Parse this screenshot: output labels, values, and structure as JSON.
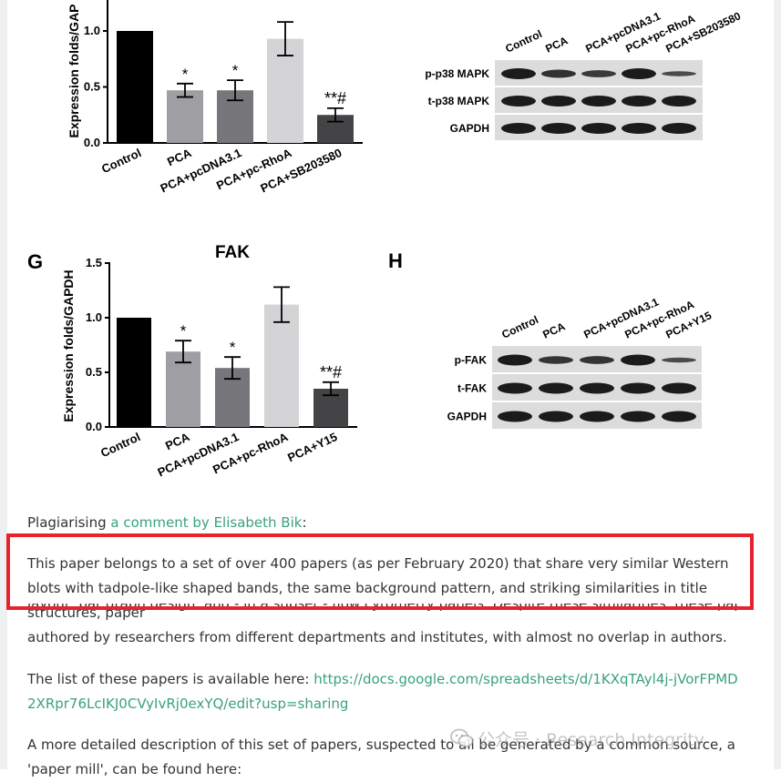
{
  "figure": {
    "top_chart": {
      "ylabel": "Expression folds/GAPDH",
      "ylabel_visible": "Expression folds/GAP",
      "yticks": [
        "1.0",
        "0.5",
        "0.0"
      ],
      "bars": [
        {
          "label": "Control",
          "value": 1.0,
          "err": 0,
          "sig": ""
        },
        {
          "label": "PCA",
          "value": 0.47,
          "err": 0.06,
          "sig": "*"
        },
        {
          "label": "PCA+pcDNA3.1",
          "value": 0.47,
          "err": 0.09,
          "sig": "*"
        },
        {
          "label": "PCA+pc-RhoA",
          "value": 0.93,
          "err": 0.15,
          "sig": ""
        },
        {
          "label": "PCA+SB203580",
          "value": 0.25,
          "err": 0.06,
          "sig": "**#"
        }
      ]
    },
    "top_blot": {
      "lanes": [
        "Control",
        "PCA",
        "PCA+pcDNA3.1",
        "PCA+pc-RhoA",
        "PCA+SB203580"
      ],
      "rows": [
        "p-p38 MAPK",
        "t-p38 MAPK",
        "GAPDH"
      ]
    },
    "panel_g": {
      "letter": "G",
      "title": "FAK",
      "ylabel": "Expression folds/GAPDH",
      "yticks": [
        "1.5",
        "1.0",
        "0.5",
        "0.0"
      ],
      "ylim": [
        0,
        1.5
      ],
      "bars": [
        {
          "label": "Control",
          "value": 1.0,
          "err": 0,
          "sig": ""
        },
        {
          "label": "PCA",
          "value": 0.69,
          "err": 0.1,
          "sig": "*"
        },
        {
          "label": "PCA+pcDNA3.1",
          "value": 0.54,
          "err": 0.1,
          "sig": "*"
        },
        {
          "label": "PCA+pc-RhoA",
          "value": 1.12,
          "err": 0.16,
          "sig": ""
        },
        {
          "label": "PCA+Y15",
          "value": 0.35,
          "err": 0.06,
          "sig": "**#"
        }
      ]
    },
    "panel_h": {
      "letter": "H",
      "lanes": [
        "Control",
        "PCA",
        "PCA+pcDNA3.1",
        "PCA+pc-RhoA",
        "PCA+Y15"
      ],
      "rows": [
        "p-FAK",
        "t-FAK",
        "GAPDH"
      ]
    }
  },
  "article": {
    "p1_prefix": "Plagiarising ",
    "p1_link": "a comment by Elisabeth Bik",
    "p1_suffix": ":",
    "p2": "This paper belongs to a set of over 400 papers (as per February 2020) that share very similar Western blots with tadpole-like shaped bands, the same background pattern, and striking similarities in title structures, paper",
    "p2_clipped": "layout, bar graph design, and - in a subset - flow cytometry panels. Despite these similarities, these papers are",
    "p2_end": "authored by researchers from different departments and institutes, with almost no overlap in authors.",
    "p3_prefix": "The list of these papers is available here: ",
    "p3_link": "https://docs.google.com/spreadsheets/d/1KXqTAyl4j-jVorFPMD2XRpr76LcIKJ0CVyIvRj0exYQ/edit?usp=sharing",
    "p4": "A more detailed description of this set of papers, suspected to all be generated by a common source, a 'paper mill', can be found here:"
  },
  "watermark": {
    "text": "公众号 · Research Integrity"
  },
  "colors": {
    "link": "#3aa17e",
    "highlight_border": "#e8232b",
    "bar_fills": [
      "#000000",
      "#9e9ea3",
      "#77777b",
      "#d4d4d7",
      "#444447"
    ]
  }
}
